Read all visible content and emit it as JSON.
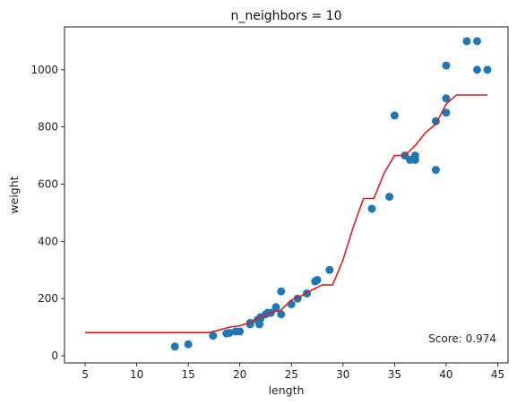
{
  "chart_data": {
    "type": "scatter",
    "title": "n_neighbors = 10",
    "xlabel": "length",
    "ylabel": "weight",
    "xlim": [
      3.0,
      46.0
    ],
    "ylim": [
      -25,
      1150
    ],
    "xticks": [
      5,
      10,
      15,
      20,
      25,
      30,
      35,
      40,
      45
    ],
    "yticks": [
      0,
      200,
      400,
      600,
      800,
      1000
    ],
    "annotation": "Score: 0.974",
    "grid": false,
    "colors": {
      "scatter": "#1f77b4",
      "line": "#e41a1c"
    },
    "series": [
      {
        "kind": "scatter",
        "points": [
          [
            13.7,
            32
          ],
          [
            15.0,
            40
          ],
          [
            17.4,
            70
          ],
          [
            18.7,
            78
          ],
          [
            19.0,
            80
          ],
          [
            19.6,
            85
          ],
          [
            20.0,
            85
          ],
          [
            21.0,
            110
          ],
          [
            21.0,
            115
          ],
          [
            21.7,
            125
          ],
          [
            21.9,
            110
          ],
          [
            22.0,
            130
          ],
          [
            22.0,
            135
          ],
          [
            22.5,
            145
          ],
          [
            22.7,
            150
          ],
          [
            23.0,
            150
          ],
          [
            23.5,
            170
          ],
          [
            24.0,
            145
          ],
          [
            24.0,
            225
          ],
          [
            25.0,
            180
          ],
          [
            25.6,
            200
          ],
          [
            26.5,
            218
          ],
          [
            27.3,
            260
          ],
          [
            27.5,
            265
          ],
          [
            28.7,
            300
          ],
          [
            32.8,
            514
          ],
          [
            34.5,
            556
          ],
          [
            35.0,
            840
          ],
          [
            36.0,
            700
          ],
          [
            36.5,
            685
          ],
          [
            37.0,
            685
          ],
          [
            37.0,
            700
          ],
          [
            39.0,
            650
          ],
          [
            39.0,
            820
          ],
          [
            40.0,
            850
          ],
          [
            40.0,
            900
          ],
          [
            40.0,
            1015
          ],
          [
            42.0,
            1100
          ],
          [
            43.0,
            1100
          ],
          [
            43.0,
            1000
          ],
          [
            44.0,
            1000
          ]
        ]
      },
      {
        "kind": "line",
        "points": [
          [
            5,
            81
          ],
          [
            17,
            81
          ],
          [
            18,
            90
          ],
          [
            19,
            100
          ],
          [
            20,
            105
          ],
          [
            21,
            115
          ],
          [
            22,
            135
          ],
          [
            23,
            150
          ],
          [
            24,
            160
          ],
          [
            25,
            195
          ],
          [
            26,
            210
          ],
          [
            27,
            230
          ],
          [
            28,
            248
          ],
          [
            29,
            248
          ],
          [
            30,
            335
          ],
          [
            31,
            450
          ],
          [
            32,
            550
          ],
          [
            33,
            550
          ],
          [
            34,
            640
          ],
          [
            35,
            700
          ],
          [
            36,
            700
          ],
          [
            37,
            735
          ],
          [
            38,
            780
          ],
          [
            39,
            810
          ],
          [
            40,
            880
          ],
          [
            41,
            912
          ],
          [
            42,
            912
          ],
          [
            43,
            912
          ],
          [
            44,
            912
          ]
        ]
      }
    ]
  }
}
